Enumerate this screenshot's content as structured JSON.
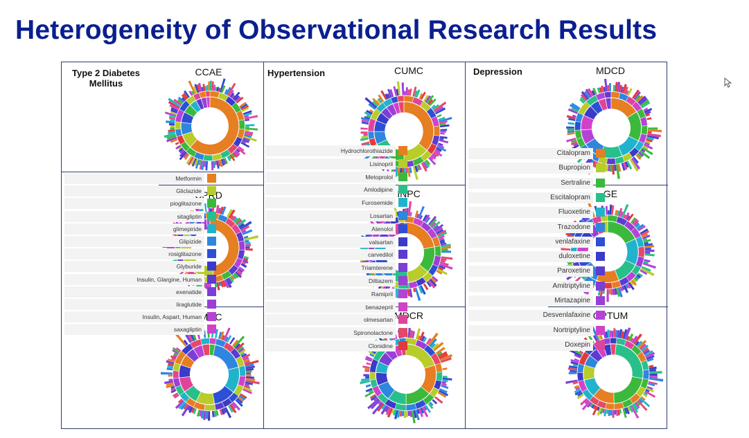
{
  "slide": {
    "title": "Heterogeneity of Observational Research Results"
  },
  "panels": [
    {
      "heading": "Type 2 Diabetes\nMellitus",
      "databases": [
        "CCAE",
        "CPRD",
        "JMDC"
      ],
      "legend": [
        "Metformin",
        "Gliclazide",
        "pioglitazone",
        "sitagliptin",
        "glimepiride",
        "Glipizide",
        "rosiglitazone",
        "Glyburide",
        "Insulin, Glargine, Human",
        "exenatide",
        "liraglutide",
        "Insulin, Aspart, Human",
        "saxagliptin"
      ]
    },
    {
      "heading": "Hypertension",
      "databases": [
        "CUMC",
        "INPC",
        "MDCR"
      ],
      "legend": [
        "Hydrochlorothiazide",
        "Lisinopril",
        "Metoprolol",
        "Amlodipine",
        "Furosemide",
        "Losartan",
        "Atenolol",
        "valsartan",
        "carvedilol",
        "Triamterene",
        "Diltiazem",
        "Ramipril",
        "benazepril",
        "olmesartan",
        "Spironolactone",
        "Clonidine"
      ]
    },
    {
      "heading": "Depression",
      "databases": [
        "MDCD",
        "GE",
        "OPTUM"
      ],
      "legend": [
        "Citalopram",
        "Bupropion",
        "Sertraline",
        "Escitalopram",
        "Fluoxetine",
        "Trazodone",
        "venlafaxine",
        "duloxetine",
        "Paroxetine",
        "Amitriptyline",
        "Mirtazapine",
        "Desvenlafaxine",
        "Nortriptyline",
        "Doxepin"
      ]
    }
  ],
  "palette": [
    "#e67e22",
    "#b8cc2a",
    "#3cb93c",
    "#28c08a",
    "#22b3cc",
    "#2e86de",
    "#2d4fd6",
    "#3b3bc9",
    "#5b3bd0",
    "#7b3fd6",
    "#9b3fd6",
    "#b642d8",
    "#d142c8",
    "#e0449a",
    "#e54868",
    "#e23a3a"
  ],
  "sunbursts": [
    {
      "db": "CCAE",
      "inner": [
        [
          0,
          0.62
        ],
        [
          1,
          0.08
        ],
        [
          5,
          0.07
        ],
        [
          6,
          0.06
        ],
        [
          2,
          0.05
        ],
        [
          4,
          0.04
        ],
        [
          8,
          0.03
        ],
        [
          10,
          0.03
        ],
        [
          12,
          0.02
        ]
      ],
      "rot": 0
    },
    {
      "db": "CPRD",
      "inner": [
        [
          0,
          0.48
        ],
        [
          1,
          0.36
        ],
        [
          6,
          0.05
        ],
        [
          3,
          0.03
        ],
        [
          8,
          0.03
        ],
        [
          10,
          0.03
        ],
        [
          12,
          0.02
        ]
      ],
      "rot": 0
    },
    {
      "db": "JMDC",
      "inner": [
        [
          5,
          0.18
        ],
        [
          4,
          0.14
        ],
        [
          6,
          0.12
        ],
        [
          1,
          0.1
        ],
        [
          3,
          0.08
        ],
        [
          13,
          0.08
        ],
        [
          7,
          0.07
        ],
        [
          0,
          0.06
        ],
        [
          9,
          0.05
        ],
        [
          11,
          0.05
        ],
        [
          14,
          0.04
        ],
        [
          2,
          0.03
        ]
      ],
      "rot": 0.2
    },
    {
      "db": "CUMC",
      "inner": [
        [
          0,
          0.36
        ],
        [
          1,
          0.14
        ],
        [
          2,
          0.1
        ],
        [
          3,
          0.08
        ],
        [
          5,
          0.07
        ],
        [
          6,
          0.06
        ],
        [
          7,
          0.05
        ],
        [
          9,
          0.04
        ],
        [
          10,
          0.04
        ],
        [
          12,
          0.03
        ],
        [
          14,
          0.03
        ]
      ],
      "rot": 0
    },
    {
      "db": "INPC",
      "inner": [
        [
          0,
          0.22
        ],
        [
          2,
          0.14
        ],
        [
          1,
          0.12
        ],
        [
          3,
          0.1
        ],
        [
          5,
          0.09
        ],
        [
          6,
          0.08
        ],
        [
          4,
          0.07
        ],
        [
          8,
          0.06
        ],
        [
          11,
          0.05
        ],
        [
          13,
          0.04
        ],
        [
          15,
          0.03
        ]
      ],
      "rot": 0
    },
    {
      "db": "MDCR",
      "inner": [
        [
          1,
          0.2
        ],
        [
          0,
          0.16
        ],
        [
          2,
          0.14
        ],
        [
          3,
          0.1
        ],
        [
          5,
          0.09
        ],
        [
          7,
          0.07
        ],
        [
          4,
          0.06
        ],
        [
          9,
          0.06
        ],
        [
          10,
          0.05
        ],
        [
          12,
          0.04
        ],
        [
          14,
          0.03
        ]
      ],
      "rot": 0
    },
    {
      "db": "MDCD",
      "inner": [
        [
          0,
          0.16
        ],
        [
          2,
          0.16
        ],
        [
          4,
          0.12
        ],
        [
          3,
          0.12
        ],
        [
          5,
          0.1
        ],
        [
          11,
          0.08
        ],
        [
          12,
          0.08
        ],
        [
          7,
          0.06
        ],
        [
          6,
          0.05
        ],
        [
          13,
          0.04
        ],
        [
          9,
          0.03
        ]
      ],
      "rot": 0
    },
    {
      "db": "GE",
      "inner": [
        [
          2,
          0.18
        ],
        [
          4,
          0.14
        ],
        [
          3,
          0.12
        ],
        [
          0,
          0.12
        ],
        [
          5,
          0.1
        ],
        [
          6,
          0.08
        ],
        [
          12,
          0.08
        ],
        [
          7,
          0.06
        ],
        [
          10,
          0.05
        ],
        [
          13,
          0.04
        ],
        [
          1,
          0.03
        ]
      ],
      "rot": 0
    },
    {
      "db": "OPTUM",
      "inner": [
        [
          3,
          0.26
        ],
        [
          2,
          0.22
        ],
        [
          0,
          0.12
        ],
        [
          4,
          0.1
        ],
        [
          1,
          0.08
        ],
        [
          5,
          0.06
        ],
        [
          8,
          0.05
        ],
        [
          12,
          0.04
        ],
        [
          7,
          0.04
        ],
        [
          14,
          0.03
        ]
      ],
      "rot": 0.1
    }
  ]
}
